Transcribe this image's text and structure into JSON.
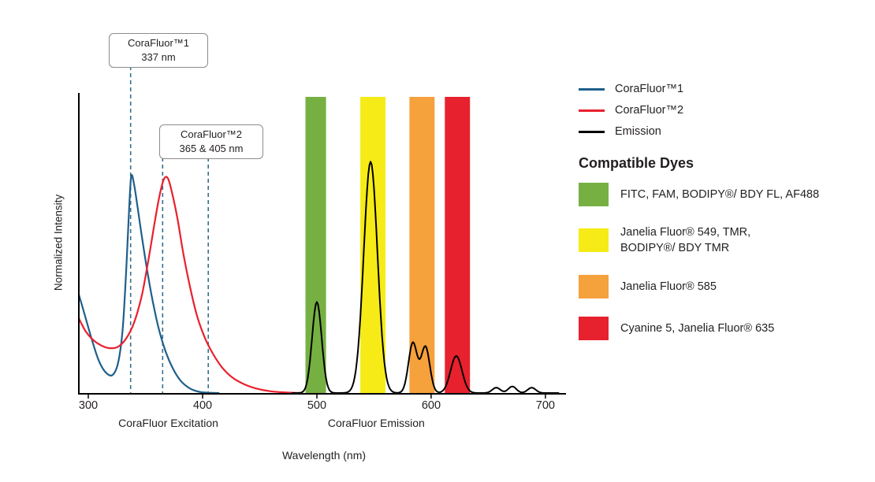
{
  "legend": {
    "series": [
      {
        "label": "CoraFluor™1",
        "color": "#1f5f8b"
      },
      {
        "label": "CoraFluor™2",
        "color": "#e9202d"
      },
      {
        "label": "Emission",
        "color": "#000000"
      }
    ],
    "dyes_heading": "Compatible Dyes",
    "dyes": [
      {
        "color": "#76b043",
        "label": "FITC, FAM, BODIPY®/ BDY FL, AF488"
      },
      {
        "color": "#f6eb16",
        "label": "Janelia Fluor® 549, TMR,\nBODIPY®/ BDY TMR"
      },
      {
        "color": "#f5a13c",
        "label": "Janelia Fluor® 585"
      },
      {
        "color": "#e8212e",
        "label": "Cyanine 5, Janelia Fluor® 635"
      }
    ]
  },
  "chart_data": {
    "type": "line",
    "title": "",
    "xlabel": "Wavelength (nm)",
    "ylabel": "Normalized Intensity",
    "x_ticks": [
      300,
      400,
      500,
      600,
      700
    ],
    "x_axis_nm_range": [
      291.7,
      718
    ],
    "ylim": [
      0,
      1
    ],
    "grid": false,
    "legend_position": "right",
    "marker_line_color": "#35708e",
    "section_labels": [
      {
        "label": "CoraFluor Excitation",
        "center_nm": 370
      },
      {
        "label": "CoraFluor Emission",
        "center_nm": 552
      }
    ],
    "callouts": [
      {
        "lines": [
          "CoraFluor™1",
          "337 nm"
        ],
        "markers_nm": [
          337
        ]
      },
      {
        "lines": [
          "CoraFluor™2",
          "365 & 405 nm"
        ],
        "markers_nm": [
          365,
          405
        ]
      }
    ],
    "excitation_series": [
      {
        "name": "CoraFluor™1",
        "color": "#1f5f8b",
        "points": [
          [
            291.7,
            0.33
          ],
          [
            297,
            0.26
          ],
          [
            303,
            0.18
          ],
          [
            309,
            0.11
          ],
          [
            315,
            0.07
          ],
          [
            321,
            0.06
          ],
          [
            326,
            0.1
          ],
          [
            330,
            0.21
          ],
          [
            333,
            0.4
          ],
          [
            335.5,
            0.6
          ],
          [
            337.5,
            0.725
          ],
          [
            340,
            0.7
          ],
          [
            343,
            0.625
          ],
          [
            347,
            0.52
          ],
          [
            352,
            0.4
          ],
          [
            357,
            0.295
          ],
          [
            362,
            0.21
          ],
          [
            368,
            0.135
          ],
          [
            374,
            0.082
          ],
          [
            381,
            0.04
          ],
          [
            389,
            0.015
          ],
          [
            397,
            0.004
          ],
          [
            405,
            0.001
          ],
          [
            414,
            0
          ]
        ]
      },
      {
        "name": "CoraFluor™2",
        "color": "#e9202d",
        "points": [
          [
            291.7,
            0.25
          ],
          [
            298,
            0.205
          ],
          [
            305,
            0.175
          ],
          [
            312,
            0.158
          ],
          [
            319,
            0.15
          ],
          [
            326,
            0.155
          ],
          [
            333,
            0.182
          ],
          [
            340,
            0.235
          ],
          [
            347,
            0.33
          ],
          [
            353,
            0.455
          ],
          [
            358,
            0.57
          ],
          [
            362,
            0.655
          ],
          [
            366,
            0.715
          ],
          [
            369.5,
            0.72
          ],
          [
            373,
            0.675
          ],
          [
            378,
            0.585
          ],
          [
            383,
            0.47
          ],
          [
            389,
            0.355
          ],
          [
            395,
            0.26
          ],
          [
            402,
            0.185
          ],
          [
            409,
            0.132
          ],
          [
            417,
            0.086
          ],
          [
            426,
            0.052
          ],
          [
            436,
            0.03
          ],
          [
            447,
            0.015
          ],
          [
            459,
            0.006
          ],
          [
            472,
            0.002
          ],
          [
            486,
            0
          ]
        ]
      }
    ],
    "emission_series": {
      "name": "Emission",
      "color": "#000000",
      "peaks": [
        {
          "center_nm": 500,
          "height": 0.305,
          "sigma_nm": 4.2
        },
        {
          "center_nm": 547,
          "height": 0.775,
          "sigma_nm": 6.0
        },
        {
          "center_nm": 584,
          "height": 0.168,
          "sigma_nm": 3.8
        },
        {
          "center_nm": 595,
          "height": 0.155,
          "sigma_nm": 3.8
        },
        {
          "center_nm": 622,
          "height": 0.124,
          "sigma_nm": 5.0
        },
        {
          "center_nm": 657,
          "height": 0.018,
          "sigma_nm": 3.5
        },
        {
          "center_nm": 671,
          "height": 0.022,
          "sigma_nm": 3.5
        },
        {
          "center_nm": 688,
          "height": 0.018,
          "sigma_nm": 3.5
        }
      ]
    },
    "filter_bands": [
      {
        "nm": [
          490,
          508
        ],
        "color": "#76b043",
        "dyes": "FITC, FAM, BODIPY®/ BDY FL, AF488"
      },
      {
        "nm": [
          538,
          560
        ],
        "color": "#f6eb16",
        "dyes": "Janelia Fluor® 549, TMR, BODIPY®/ BDY TMR"
      },
      {
        "nm": [
          581,
          603
        ],
        "color": "#f5a13c",
        "dyes": "Janelia Fluor® 585"
      },
      {
        "nm": [
          612,
          634
        ],
        "color": "#e8212e",
        "dyes": "Cyanine 5, Janelia Fluor® 635"
      }
    ]
  }
}
